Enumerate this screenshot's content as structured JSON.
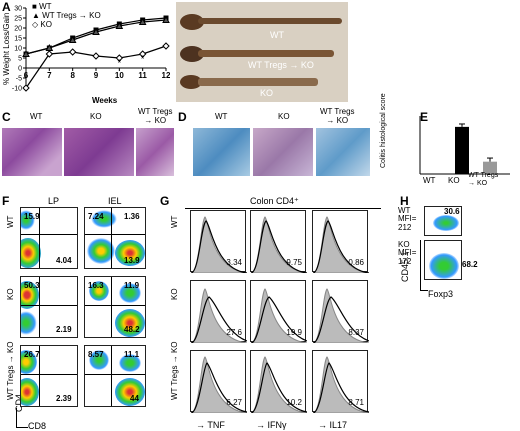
{
  "panels": {
    "A": "A",
    "B": "B",
    "C": "C",
    "D": "D",
    "E": "E",
    "F": "F",
    "G": "G",
    "H": "H"
  },
  "panelA": {
    "legend": [
      "WT",
      "WT Tregs → KO",
      "KO"
    ],
    "ylabel": "% Weight Loss/Gain",
    "xlabel": "Weeks",
    "yticks": [
      "30",
      "25",
      "20",
      "15",
      "10",
      "5",
      "0",
      "-5",
      "-10"
    ],
    "xticks": [
      "6",
      "7",
      "8",
      "9",
      "10",
      "11",
      "12"
    ],
    "stars": [
      "*",
      "*"
    ]
  },
  "chart_data": {
    "type": "line",
    "x": [
      6,
      7,
      8,
      9,
      10,
      11,
      12
    ],
    "ylim": [
      -10,
      30
    ],
    "xlabel": "Weeks",
    "ylabel": "% Weight Loss/Gain",
    "series": [
      {
        "name": "WT",
        "values": [
          7,
          10,
          15,
          19,
          22,
          24,
          25
        ]
      },
      {
        "name": "WT Tregs → KO",
        "values": [
          7,
          10,
          14,
          18,
          21,
          23,
          24
        ]
      },
      {
        "name": "KO",
        "values": [
          -10,
          7,
          8,
          6,
          5,
          7,
          11
        ]
      }
    ]
  },
  "panelB": {
    "labels": [
      "WT",
      "WT Tregs → KO",
      "KO"
    ]
  },
  "panelC": {
    "labels": [
      "WT",
      "KO",
      "WT Tregs\n→ KO"
    ]
  },
  "panelD": {
    "labels": [
      "WT",
      "KO",
      "WT Tregs\n→ KO"
    ]
  },
  "panelE": {
    "ylabel": "Colitis histological score",
    "categories": [
      "WT",
      "KO",
      "WT Tregs\n→ KO"
    ],
    "values": [
      0,
      6.5,
      1.7
    ]
  },
  "panelF": {
    "cols": [
      "LP",
      "IEL"
    ],
    "rows": [
      "WT",
      "KO",
      "WT Tregs → KO"
    ],
    "yaxis": "CD4",
    "xaxis": "CD8",
    "values": [
      [
        [
          "15.9",
          "4.04"
        ],
        [
          "7.24",
          "1.36",
          "13.9"
        ]
      ],
      [
        [
          "50.3",
          "2.19"
        ],
        [
          "16.3",
          "11.9",
          "48.2"
        ]
      ],
      [
        [
          "26.7",
          "2.39"
        ],
        [
          "8.57",
          "11.1",
          "44"
        ]
      ]
    ]
  },
  "panelG": {
    "title": "Colon CD4⁺",
    "rows": [
      "WT",
      "KO",
      "WT Tregs → KO"
    ],
    "xlabels": [
      "TNF",
      "IFNγ",
      "IL17"
    ],
    "values": [
      [
        "3.34",
        "9.75",
        "0.86"
      ],
      [
        "27.6",
        "19.9",
        "8.37"
      ],
      [
        "6.27",
        "10.2",
        "8.71"
      ]
    ]
  },
  "panelH": {
    "yaxis": "CD45.1",
    "xaxis": "Foxp3",
    "wt_label": "WT",
    "wt_mfi": "MFI=\n212",
    "wt_value": "30.6",
    "ko_label": "KO",
    "ko_mfi": "MFI=\n172",
    "ko_value": "68.2"
  }
}
